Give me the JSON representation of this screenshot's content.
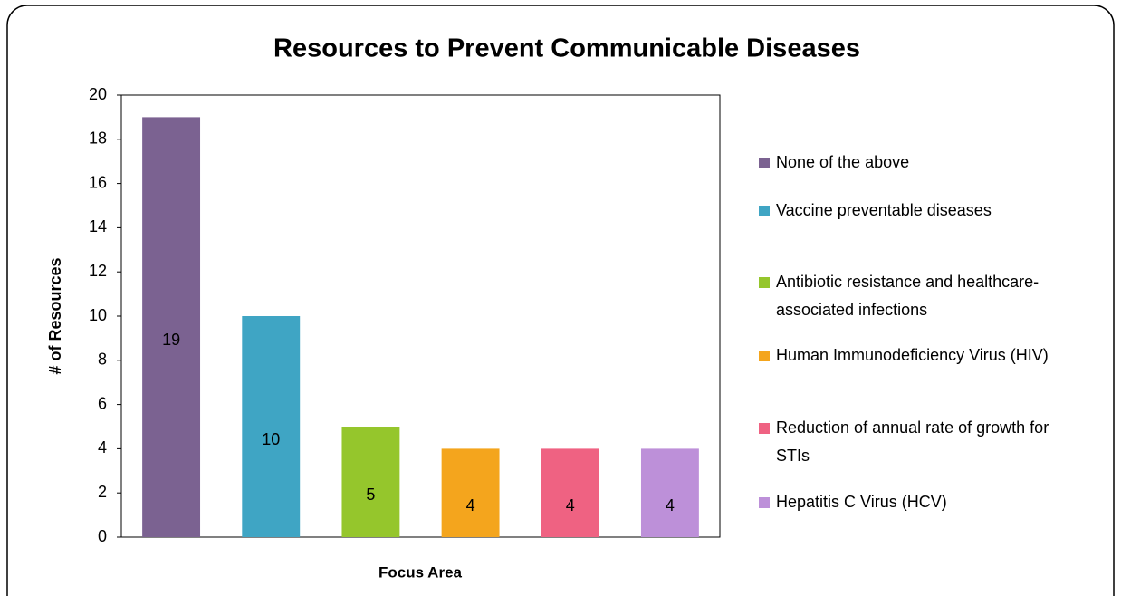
{
  "chart_data": {
    "type": "bar",
    "title": "Resources to Prevent Communicable Diseases",
    "x_label": "Focus Area",
    "y_label": "# of Resources",
    "categories": [
      "None of the above",
      "Vaccine preventable diseases",
      "Antibiotic resistance and healthcare-associated infections",
      "Human Immunodeficiency Virus (HIV)",
      "Reduction of annual rate of growth for STIs",
      "Hepatitis C Virus (HCV)"
    ],
    "values": [
      19,
      10,
      5,
      4,
      4,
      4
    ],
    "colors": [
      "#7b6291",
      "#3fa5c4",
      "#95c62c",
      "#f4a51d",
      "#ef6282",
      "#bd90d9"
    ],
    "ylim": [
      0,
      20
    ],
    "yticks": [
      0,
      2,
      4,
      6,
      8,
      10,
      12,
      14,
      16,
      18,
      20
    ],
    "legend": "right"
  }
}
